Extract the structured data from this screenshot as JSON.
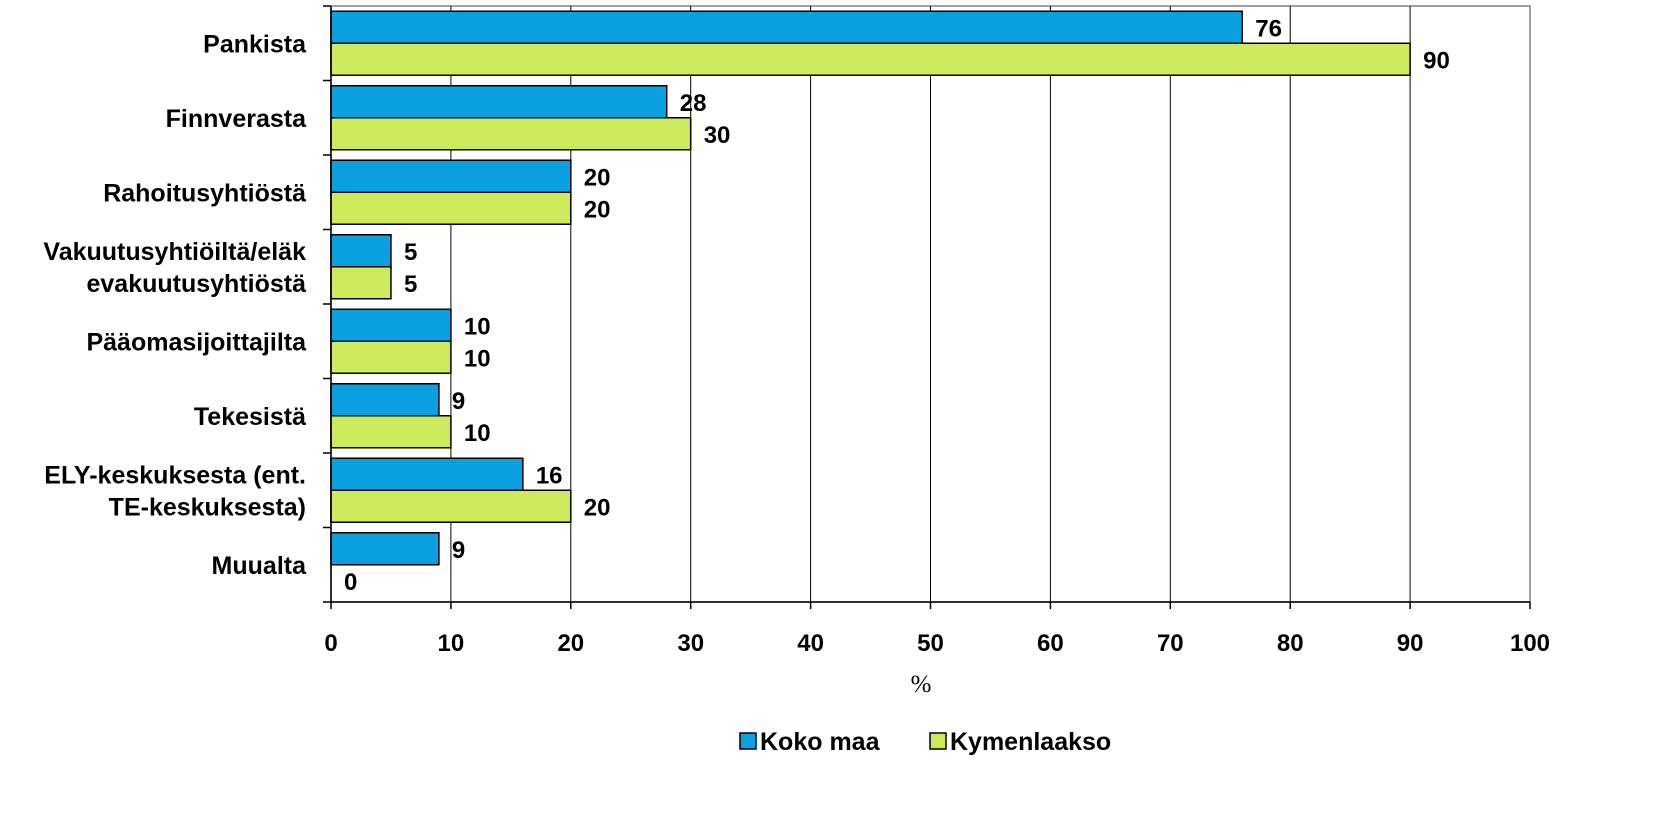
{
  "chart_data": {
    "type": "bar",
    "orientation": "horizontal",
    "categories": [
      [
        "Pankista"
      ],
      [
        "Finnverasta"
      ],
      [
        "Rahoitusyhtiöstä"
      ],
      [
        "Vakuutusyhtiöiltä/eläk",
        "evakuutusyhtiöstä"
      ],
      [
        "Pääomasijoittajilta"
      ],
      [
        "Tekesistä"
      ],
      [
        "ELY-keskuksesta (ent.",
        "TE-keskuksesta)"
      ],
      [
        "Muualta"
      ]
    ],
    "series": [
      {
        "name": "Koko maa",
        "color": "#0ba0df",
        "values": [
          76,
          28,
          20,
          5,
          10,
          9,
          16,
          9
        ]
      },
      {
        "name": "Kymenlaakso",
        "color": "#cde95c",
        "values": [
          90,
          30,
          20,
          5,
          10,
          10,
          20,
          0
        ]
      }
    ],
    "xlim": [
      0,
      100
    ],
    "xticks": [
      0,
      10,
      20,
      30,
      40,
      50,
      60,
      70,
      80,
      90,
      100
    ],
    "xlabel": "%",
    "grid": true,
    "legend_position": "bottom"
  }
}
